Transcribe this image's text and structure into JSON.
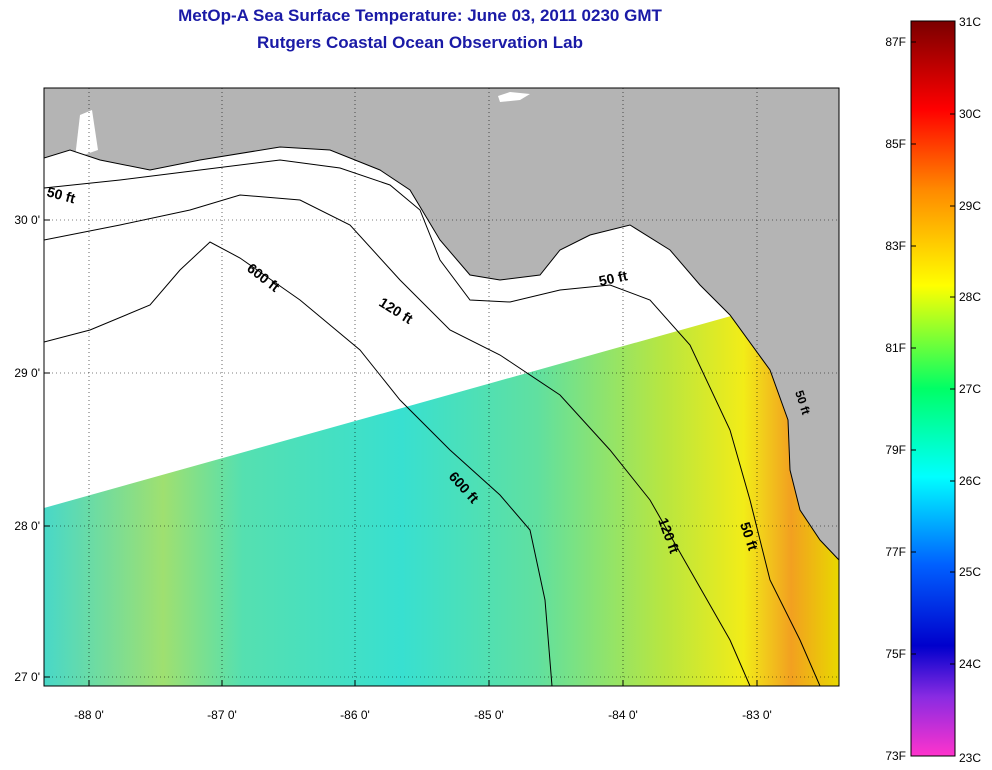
{
  "title": "MetOp-A Sea Surface Temperature:  June 03, 2011 0230 GMT",
  "subtitle": "Rutgers Coastal Ocean Observation Lab",
  "map": {
    "lat_labels": [
      "30 0'",
      "29 0'",
      "28 0'",
      "27 0'"
    ],
    "lon_labels": [
      "-88 0'",
      "-87 0'",
      "-86 0'",
      "-85 0'",
      "-84 0'",
      "-83 0'"
    ],
    "contour_labels": [
      "50 ft",
      "600 ft",
      "120 ft",
      "50 ft",
      "600 ft",
      "120 ft",
      "50 ft",
      "50 ft"
    ],
    "colors": {
      "land": "#b4b4b4",
      "nodata": "#ffffff",
      "contour": "#000000",
      "gridline": "#000000"
    }
  },
  "colorbar": {
    "celsius_labels": [
      "31C",
      "30C",
      "29C",
      "28C",
      "27C",
      "26C",
      "25C",
      "24C",
      "23C"
    ],
    "fahrenheit_labels": [
      "87F",
      "85F",
      "83F",
      "81F",
      "79F",
      "77F",
      "75F",
      "73F"
    ],
    "range_c": [
      23,
      31
    ],
    "gradient": [
      "#7a0000",
      "#ff0000",
      "#ff8a00",
      "#ffff00",
      "#00ff66",
      "#00ffff",
      "#0060ff",
      "#0000cc",
      "#8a2be2",
      "#ff33cc"
    ]
  }
}
